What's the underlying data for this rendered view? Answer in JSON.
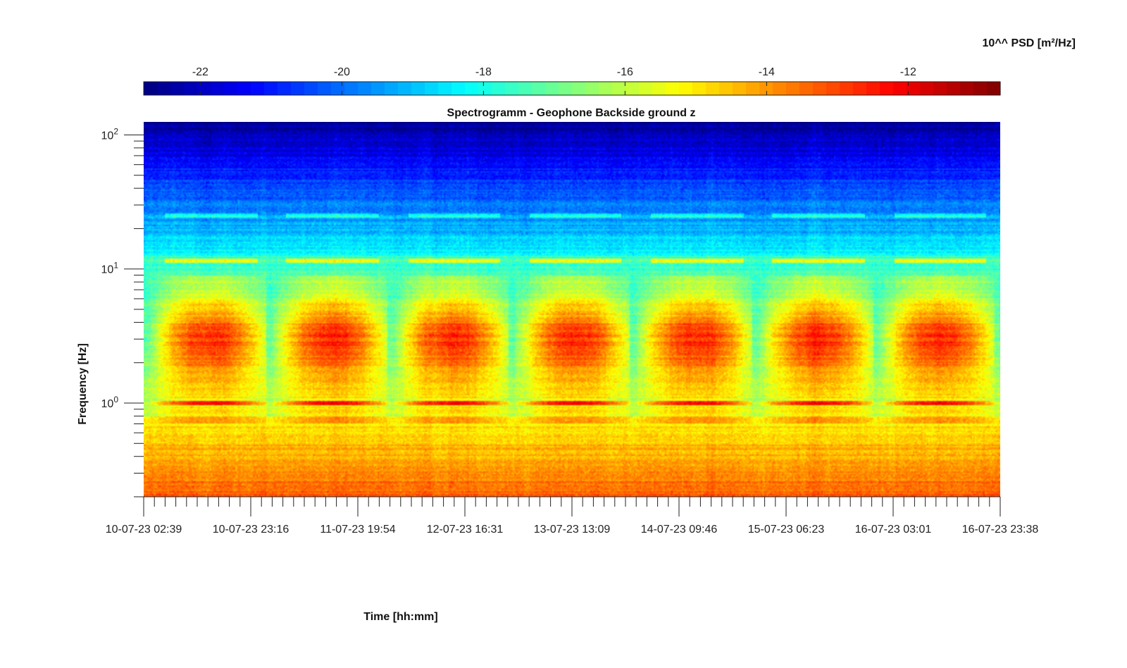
{
  "chart_data": {
    "type": "heatmap",
    "title": "Spectrogramm - Geophone Backside ground z",
    "xlabel": "Time [hh:mm]",
    "ylabel": "Frequency [Hz]",
    "y_scale": "log",
    "ylim": [
      0.2,
      125
    ],
    "y_ticks": [
      {
        "value": 1,
        "base": "10",
        "exp": "0"
      },
      {
        "value": 10,
        "base": "10",
        "exp": "1"
      },
      {
        "value": 100,
        "base": "10",
        "exp": "2"
      }
    ],
    "x_tick_labels": [
      "10-07-23 02:39",
      "10-07-23 23:16",
      "11-07-23 19:54",
      "12-07-23 16:31",
      "13-07-23 13:09",
      "14-07-23 09:46",
      "15-07-23 06:23",
      "16-07-23 03:01",
      "16-07-23 23:38"
    ],
    "colorbar": {
      "label": "10^^ PSD [m²/Hz]",
      "range": [
        -22.8,
        -10.7
      ],
      "ticks": [
        -22,
        -20,
        -18,
        -16,
        -14,
        -12
      ],
      "colormap": "jet"
    },
    "features": {
      "broadband_peak_hz": 3,
      "line_hz": [
        1,
        11.5,
        25
      ]
    }
  }
}
